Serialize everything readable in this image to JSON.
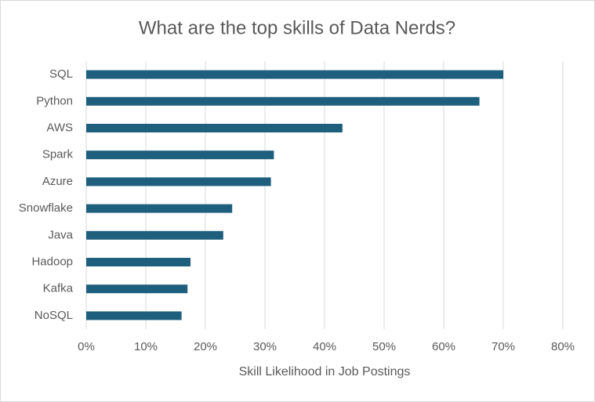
{
  "chart_data": {
    "type": "bar",
    "orientation": "horizontal",
    "title": "What are the top skills of Data Nerds?",
    "x_label": "Skill Likelihood in Job Postings",
    "categories": [
      "SQL",
      "Python",
      "AWS",
      "Spark",
      "Azure",
      "Snowflake",
      "Java",
      "Hadoop",
      "Kafka",
      "NoSQL"
    ],
    "values": [
      70,
      66,
      43,
      31.5,
      31,
      24.5,
      23,
      17.5,
      17,
      16
    ],
    "color": "#1f5f7e",
    "xlim": [
      0,
      80
    ],
    "xticks": [
      {
        "value": 0,
        "label": "0%"
      },
      {
        "value": 10,
        "label": "10%"
      },
      {
        "value": 20,
        "label": "20%"
      },
      {
        "value": 30,
        "label": "30%"
      },
      {
        "value": 40,
        "label": "40%"
      },
      {
        "value": 50,
        "label": "50%"
      },
      {
        "value": 60,
        "label": "60%"
      },
      {
        "value": 70,
        "label": "70%"
      },
      {
        "value": 80,
        "label": "80%"
      }
    ],
    "grid": true
  }
}
